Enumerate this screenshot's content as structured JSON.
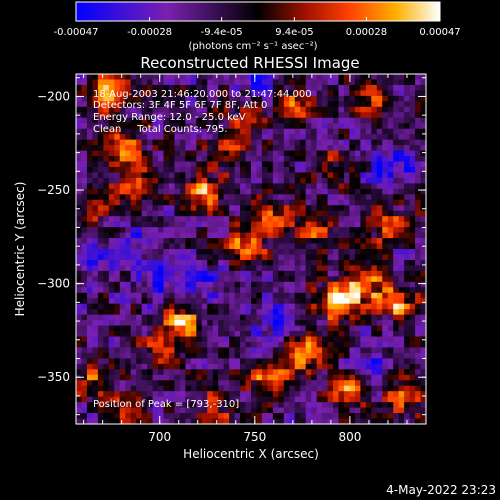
{
  "colorbar": {
    "ticks": [
      "-0.00047",
      "-0.00028",
      "-9.4e-05",
      "9.4e-05",
      "0.00028",
      "0.00047"
    ],
    "tick_values": [
      -0.00047,
      -0.00028,
      -9.4e-05,
      9.4e-05,
      0.00028,
      0.00047
    ],
    "unit": "(photons cm⁻² s⁻¹ asec⁻²)"
  },
  "chart_data": {
    "type": "heatmap",
    "title": "Reconstructed RHESSI Image",
    "xlabel": "Heliocentric X (arcsec)",
    "ylabel": "Heliocentric Y (arcsec)",
    "xlim": [
      656,
      840
    ],
    "ylim": [
      -375,
      -188
    ],
    "xticks": [
      700,
      750,
      800
    ],
    "yticks": [
      -200,
      -250,
      -300,
      -350
    ],
    "color_range": [
      -0.00047,
      0.00047
    ],
    "annotations": [
      "18-Aug-2003 21:46:20.000 to 21:47:44.000",
      "Detectors: 3F 4F 5F 6F 7F 8F, Att 0",
      "Energy Range: 12.0 - 25.0 keV",
      "Clean     Total Counts: 795."
    ],
    "peak_label": "Position of Peak = [793,-310]",
    "peak": [
      793,
      -310
    ],
    "hotspots": [
      {
        "x": 672,
        "y": -198,
        "v": 0.9
      },
      {
        "x": 680,
        "y": -225,
        "v": 0.85
      },
      {
        "x": 690,
        "y": -248,
        "v": 0.8
      },
      {
        "x": 665,
        "y": -260,
        "v": 0.6
      },
      {
        "x": 722,
        "y": -252,
        "v": 0.9
      },
      {
        "x": 712,
        "y": -320,
        "v": 0.85
      },
      {
        "x": 700,
        "y": -335,
        "v": 0.6
      },
      {
        "x": 745,
        "y": -280,
        "v": 0.85
      },
      {
        "x": 760,
        "y": -265,
        "v": 0.7
      },
      {
        "x": 782,
        "y": -272,
        "v": 0.6
      },
      {
        "x": 793,
        "y": -310,
        "v": 1.0
      },
      {
        "x": 808,
        "y": -300,
        "v": 0.9
      },
      {
        "x": 825,
        "y": -310,
        "v": 0.85
      },
      {
        "x": 775,
        "y": -338,
        "v": 0.95
      },
      {
        "x": 758,
        "y": -352,
        "v": 0.85
      },
      {
        "x": 800,
        "y": -357,
        "v": 0.9
      },
      {
        "x": 818,
        "y": -268,
        "v": 0.6
      },
      {
        "x": 830,
        "y": -360,
        "v": 0.75
      },
      {
        "x": 812,
        "y": -200,
        "v": 0.7
      },
      {
        "x": 770,
        "y": -205,
        "v": 0.6
      },
      {
        "x": 745,
        "y": -208,
        "v": 0.55
      },
      {
        "x": 682,
        "y": -370,
        "v": 0.6
      },
      {
        "x": 730,
        "y": -367,
        "v": 0.55
      },
      {
        "x": 664,
        "y": -352,
        "v": 0.7
      },
      {
        "x": 790,
        "y": -240,
        "v": 0.5
      },
      {
        "x": 735,
        "y": -230,
        "v": 0.5
      }
    ],
    "coldspots": [
      {
        "x": 750,
        "y": -190,
        "v": -0.7
      },
      {
        "x": 700,
        "y": -300,
        "v": -0.55
      },
      {
        "x": 665,
        "y": -285,
        "v": -0.5
      },
      {
        "x": 725,
        "y": -300,
        "v": -0.45
      },
      {
        "x": 822,
        "y": -238,
        "v": -0.6
      },
      {
        "x": 810,
        "y": -345,
        "v": -0.45
      },
      {
        "x": 690,
        "y": -275,
        "v": -0.45
      },
      {
        "x": 760,
        "y": -318,
        "v": -0.5
      }
    ]
  },
  "footer": {
    "timestamp": "4-May-2022 23:23"
  }
}
